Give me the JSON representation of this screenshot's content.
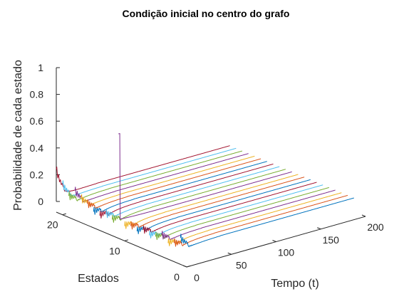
{
  "chart_data": {
    "type": "line",
    "title": "Condição inicial no centro do grafo",
    "xlabel": "Tempo (t)",
    "ylabel": "Estados",
    "zlabel": "Probabilidade de cada estado",
    "xlim": [
      0,
      200
    ],
    "ylim": [
      0,
      21
    ],
    "zlim": [
      0,
      1
    ],
    "x_ticks": [
      "0",
      "50",
      "100",
      "150",
      "200"
    ],
    "y_ticks": [
      "0",
      "10",
      "20"
    ],
    "z_ticks": [
      "0",
      "0.2",
      "0.4",
      "0.6",
      "0.8",
      "1"
    ],
    "grid": false,
    "legend": "none",
    "view": "3d-waterfall",
    "state_colors": [
      "#0072BD",
      "#D95319",
      "#EDB120",
      "#7E2F8E",
      "#77AC30",
      "#4DBEEE",
      "#A2142F"
    ],
    "series": [
      {
        "state": 1,
        "initial": 0.12,
        "steady": 0.05
      },
      {
        "state": 2,
        "initial": 0.06,
        "steady": 0.05
      },
      {
        "state": 3,
        "initial": 0.04,
        "steady": 0.05
      },
      {
        "state": 4,
        "initial": 0.08,
        "steady": 0.05
      },
      {
        "state": 5,
        "initial": 0.05,
        "steady": 0.05
      },
      {
        "state": 6,
        "initial": 0.04,
        "steady": 0.05
      },
      {
        "state": 7,
        "initial": 0.06,
        "steady": 0.05
      },
      {
        "state": 8,
        "initial": 0.03,
        "steady": 0.05
      },
      {
        "state": 9,
        "initial": 0.05,
        "steady": 0.05
      },
      {
        "state": 10,
        "initial": 0.03,
        "steady": 0.05
      },
      {
        "state": 11,
        "initial": 0.7,
        "steady": 0.05
      },
      {
        "state": 12,
        "initial": 0.04,
        "steady": 0.05
      },
      {
        "state": 13,
        "initial": 0.06,
        "steady": 0.05
      },
      {
        "state": 14,
        "initial": 0.03,
        "steady": 0.05
      },
      {
        "state": 15,
        "initial": 0.04,
        "steady": 0.05
      },
      {
        "state": 16,
        "initial": 0.08,
        "steady": 0.05
      },
      {
        "state": 17,
        "initial": 0.1,
        "steady": 0.05
      },
      {
        "state": 18,
        "initial": 0.14,
        "steady": 0.05
      },
      {
        "state": 19,
        "initial": 0.08,
        "steady": 0.05
      },
      {
        "state": 20,
        "initial": 0.15,
        "steady": 0.05
      },
      {
        "state": 21,
        "initial": 0.24,
        "steady": 0.05
      }
    ]
  }
}
